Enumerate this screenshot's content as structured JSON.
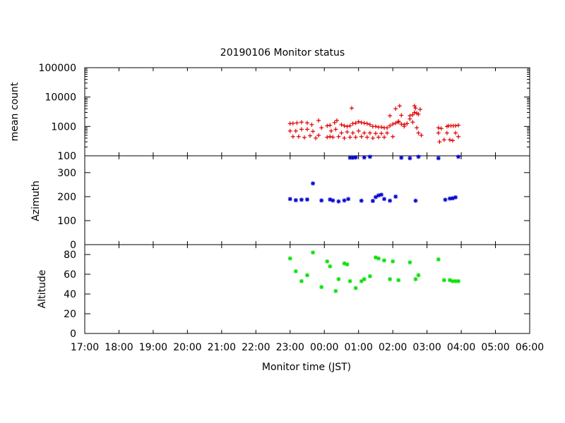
{
  "chart_data": {
    "type": "scatter",
    "title": "20190106 Monitor status",
    "xlabel": "Monitor time (JST)",
    "x_ticks": [
      "17:00",
      "18:00",
      "19:00",
      "20:00",
      "21:00",
      "22:00",
      "23:00",
      "00:00",
      "01:00",
      "02:00",
      "03:00",
      "04:00",
      "05:00",
      "06:00"
    ],
    "xlim": [
      "17:00",
      "06:00"
    ],
    "grid": false,
    "panels": [
      {
        "name": "mean-count",
        "ylabel": "mean count",
        "scale": "log",
        "ylim": [
          100,
          100000
        ],
        "y_ticks": [
          {
            "v": 100,
            "t": "100"
          },
          {
            "v": 1000,
            "t": "1000"
          },
          {
            "v": 10000,
            "t": "10000"
          },
          {
            "v": 100000,
            "t": "100000"
          }
        ],
        "color": "#e00000",
        "marker": "plus",
        "series": [
          {
            "points": [
              [
                "23:00",
                1250
              ],
              [
                "23:05",
                1270
              ],
              [
                "23:12",
                1320
              ],
              [
                "23:20",
                1400
              ],
              [
                "23:30",
                1320
              ],
              [
                "23:38",
                1150
              ],
              [
                "23:50",
                1600
              ],
              [
                "00:05",
                1050
              ],
              [
                "00:10",
                1100
              ],
              [
                "00:18",
                1350
              ],
              [
                "00:22",
                1600
              ],
              [
                "00:30",
                1150
              ],
              [
                "00:35",
                1050
              ],
              [
                "00:40",
                1000
              ],
              [
                "00:45",
                1050
              ],
              [
                "00:50",
                1250
              ],
              [
                "00:55",
                1300
              ],
              [
                "01:00",
                1450
              ],
              [
                "01:05",
                1350
              ],
              [
                "01:10",
                1300
              ],
              [
                "01:15",
                1250
              ],
              [
                "01:20",
                1150
              ],
              [
                "01:25",
                1000
              ],
              [
                "01:30",
                1000
              ],
              [
                "01:35",
                950
              ],
              [
                "01:40",
                950
              ],
              [
                "01:45",
                900
              ],
              [
                "01:50",
                900
              ],
              [
                "01:55",
                1050
              ],
              [
                "02:00",
                1200
              ],
              [
                "02:05",
                1300
              ],
              [
                "02:10",
                1400
              ],
              [
                "02:15",
                1200
              ],
              [
                "02:20",
                1150
              ],
              [
                "02:25",
                1250
              ],
              [
                "02:30",
                2300
              ],
              [
                "02:35",
                2500
              ],
              [
                "02:38",
                3000
              ],
              [
                "02:42",
                2800
              ],
              [
                "02:45",
                2600
              ],
              [
                "03:20",
                900
              ],
              [
                "03:25",
                850
              ],
              [
                "03:35",
                1000
              ],
              [
                "03:38",
                1050
              ],
              [
                "03:42",
                1050
              ],
              [
                "03:46",
                1050
              ],
              [
                "03:50",
                1050
              ],
              [
                "03:55",
                1100
              ]
            ]
          },
          {
            "points": [
              [
                "23:00",
                700
              ],
              [
                "23:05",
                450
              ],
              [
                "23:10",
                700
              ],
              [
                "23:15",
                450
              ],
              [
                "23:20",
                800
              ],
              [
                "23:25",
                420
              ],
              [
                "23:30",
                800
              ],
              [
                "23:35",
                480
              ],
              [
                "23:40",
                680
              ],
              [
                "23:45",
                400
              ],
              [
                "23:50",
                500
              ],
              [
                "23:55",
                900
              ],
              [
                "00:05",
                430
              ],
              [
                "00:10",
                450
              ],
              [
                "00:12",
                700
              ],
              [
                "00:15",
                430
              ],
              [
                "00:20",
                800
              ],
              [
                "00:25",
                450
              ],
              [
                "00:30",
                600
              ],
              [
                "00:35",
                400
              ],
              [
                "00:40",
                650
              ],
              [
                "00:45",
                430
              ],
              [
                "00:48",
                4200
              ],
              [
                "00:50",
                600
              ],
              [
                "00:55",
                430
              ],
              [
                "01:00",
                700
              ],
              [
                "01:05",
                450
              ],
              [
                "01:10",
                600
              ],
              [
                "01:15",
                430
              ],
              [
                "01:20",
                600
              ],
              [
                "01:25",
                400
              ],
              [
                "01:30",
                580
              ],
              [
                "01:35",
                430
              ],
              [
                "01:40",
                580
              ],
              [
                "01:45",
                430
              ],
              [
                "01:50",
                600
              ],
              [
                "01:55",
                2300
              ],
              [
                "02:00",
                450
              ],
              [
                "02:05",
                4000
              ],
              [
                "02:10",
                1500
              ],
              [
                "02:12",
                5000
              ],
              [
                "02:15",
                2400
              ],
              [
                "02:20",
                1000
              ],
              [
                "02:30",
                1800
              ],
              [
                "02:35",
                1400
              ],
              [
                "02:38",
                5000
              ],
              [
                "02:40",
                4200
              ],
              [
                "02:42",
                900
              ],
              [
                "02:45",
                600
              ],
              [
                "02:48",
                3800
              ],
              [
                "02:50",
                500
              ],
              [
                "03:20",
                600
              ],
              [
                "03:22",
                300
              ],
              [
                "03:30",
                350
              ],
              [
                "03:35",
                600
              ],
              [
                "03:40",
                350
              ],
              [
                "03:45",
                330
              ],
              [
                "03:50",
                600
              ],
              [
                "03:55",
                450
              ]
            ]
          }
        ]
      },
      {
        "name": "azimuth",
        "ylabel": "Azimuth",
        "scale": "linear",
        "ylim": [
          0,
          370
        ],
        "y_ticks": [
          {
            "v": 0,
            "t": "0"
          },
          {
            "v": 100,
            "t": "100"
          },
          {
            "v": 200,
            "t": "200"
          },
          {
            "v": 300,
            "t": "300"
          }
        ],
        "color": "#0000d0",
        "marker": "star",
        "series": [
          {
            "points": [
              [
                "23:00",
                190
              ],
              [
                "23:10",
                185
              ],
              [
                "23:20",
                187
              ],
              [
                "23:30",
                188
              ],
              [
                "23:40",
                255
              ],
              [
                "23:55",
                184
              ],
              [
                "00:10",
                188
              ],
              [
                "00:15",
                184
              ],
              [
                "00:25",
                180
              ],
              [
                "00:35",
                184
              ],
              [
                "00:42",
                190
              ],
              [
                "00:45",
                362
              ],
              [
                "00:50",
                362
              ],
              [
                "00:55",
                363
              ],
              [
                "01:05",
                183
              ],
              [
                "01:10",
                363
              ],
              [
                "01:20",
                366
              ],
              [
                "01:25",
                182
              ],
              [
                "01:30",
                198
              ],
              [
                "01:35",
                205
              ],
              [
                "01:40",
                208
              ],
              [
                "01:45",
                190
              ],
              [
                "01:55",
                183
              ],
              [
                "02:05",
                200
              ],
              [
                "02:15",
                362
              ],
              [
                "02:30",
                360
              ],
              [
                "02:40",
                183
              ],
              [
                "02:45",
                366
              ],
              [
                "03:20",
                360
              ],
              [
                "03:32",
                187
              ],
              [
                "03:40",
                192
              ],
              [
                "03:45",
                193
              ],
              [
                "03:50",
                197
              ],
              [
                "03:55",
                366
              ]
            ]
          }
        ]
      },
      {
        "name": "altitude",
        "ylabel": "Altitude",
        "scale": "linear",
        "ylim": [
          0,
          90
        ],
        "y_ticks": [
          {
            "v": 0,
            "t": "0"
          },
          {
            "v": 20,
            "t": "20"
          },
          {
            "v": 40,
            "t": "40"
          },
          {
            "v": 60,
            "t": "60"
          },
          {
            "v": 80,
            "t": "80"
          }
        ],
        "color": "#00e000",
        "marker": "star",
        "series": [
          {
            "points": [
              [
                "23:00",
                76
              ],
              [
                "23:10",
                63
              ],
              [
                "23:20",
                53
              ],
              [
                "23:30",
                59
              ],
              [
                "23:40",
                82
              ],
              [
                "23:55",
                47
              ],
              [
                "00:05",
                73
              ],
              [
                "00:10",
                68
              ],
              [
                "00:20",
                43
              ],
              [
                "00:25",
                55
              ],
              [
                "00:35",
                71
              ],
              [
                "00:40",
                70
              ],
              [
                "00:45",
                53
              ],
              [
                "00:55",
                46
              ],
              [
                "01:05",
                53
              ],
              [
                "01:10",
                55
              ],
              [
                "01:20",
                58
              ],
              [
                "01:30",
                77
              ],
              [
                "01:35",
                76
              ],
              [
                "01:45",
                74
              ],
              [
                "01:55",
                55
              ],
              [
                "02:00",
                73
              ],
              [
                "02:10",
                54
              ],
              [
                "02:30",
                72
              ],
              [
                "02:40",
                55
              ],
              [
                "02:45",
                59
              ],
              [
                "03:20",
                75
              ],
              [
                "03:30",
                54
              ],
              [
                "03:40",
                54
              ],
              [
                "03:45",
                53
              ],
              [
                "03:50",
                53
              ],
              [
                "03:55",
                53
              ]
            ]
          }
        ]
      }
    ]
  }
}
